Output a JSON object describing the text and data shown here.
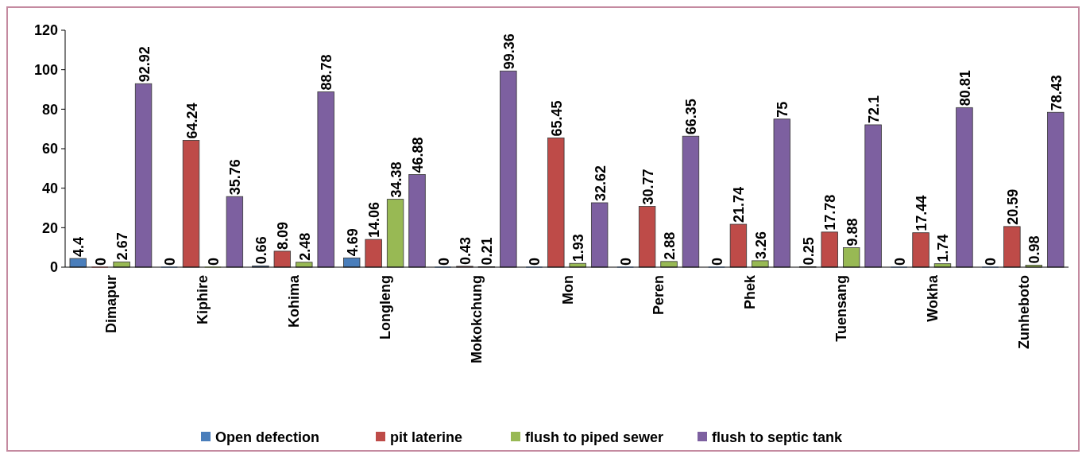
{
  "chart_data": {
    "type": "bar",
    "categories": [
      "Dimapur",
      "Kiphire",
      "Kohima",
      "Longleng",
      "Mokokchung",
      "Mon",
      "Peren",
      "Phek",
      "Tuensang",
      "Wokha",
      "Zunheboto"
    ],
    "series": [
      {
        "name": "Open defection",
        "color": "#4a7ebb",
        "values": [
          4.4,
          0,
          0.66,
          4.69,
          0,
          0,
          0,
          0,
          0.25,
          0,
          0
        ]
      },
      {
        "name": "pit laterine",
        "color": "#be4b48",
        "values": [
          0,
          64.24,
          8.09,
          14.06,
          0.43,
          65.45,
          30.77,
          21.74,
          17.78,
          17.44,
          20.59
        ]
      },
      {
        "name": "flush to piped sewer",
        "color": "#98b954",
        "values": [
          2.67,
          0,
          2.48,
          34.38,
          0.21,
          1.93,
          2.88,
          3.26,
          9.88,
          1.74,
          0.98
        ]
      },
      {
        "name": "flush to septic tank",
        "color": "#7d60a0",
        "values": [
          92.92,
          35.76,
          88.78,
          46.88,
          99.36,
          32.62,
          66.35,
          75,
          72.1,
          80.81,
          78.43
        ]
      }
    ],
    "ylim": [
      0,
      120
    ],
    "yticks": [
      0,
      20,
      40,
      60,
      80,
      100,
      120
    ],
    "data_labels": true,
    "legend": "bottom",
    "grid": false
  }
}
